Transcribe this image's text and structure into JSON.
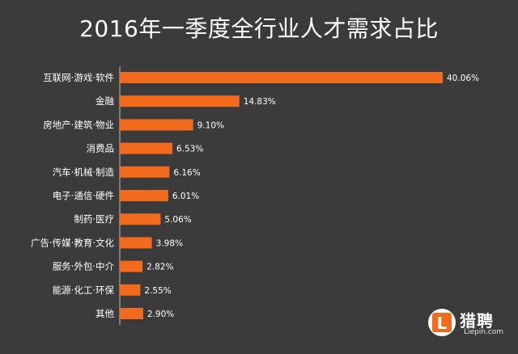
{
  "chart_data": {
    "type": "bar",
    "orientation": "horizontal",
    "title": "2016年一季度全行业人才需求占比",
    "categories": [
      "互联网·游戏·软件",
      "金融",
      "房地产·建筑·物业",
      "消费品",
      "汽车·机械·制造",
      "电子·通信·硬件",
      "制药·医疗",
      "广告·传媒·教育·文化",
      "服务·外包·中介",
      "能源·化工·环保",
      "其他"
    ],
    "values": [
      40.06,
      14.83,
      9.1,
      6.53,
      6.16,
      6.01,
      5.06,
      3.98,
      2.82,
      2.55,
      2.9
    ],
    "value_labels": [
      "40.06%",
      "14.83%",
      "9.10%",
      "6.53%",
      "6.16%",
      "6.01%",
      "5.06%",
      "3.98%",
      "2.82%",
      "2.55%",
      "2.90%"
    ],
    "xlabel": "",
    "ylabel": "",
    "xlim": [
      0,
      40.06
    ],
    "grid": false,
    "bar_color": "#f26b1d",
    "background_color": "#3b3b3b"
  },
  "logo": {
    "name": "猎聘",
    "url": "Liepin.com",
    "mark_letter": "L",
    "mark_color": "#f26b1d"
  }
}
